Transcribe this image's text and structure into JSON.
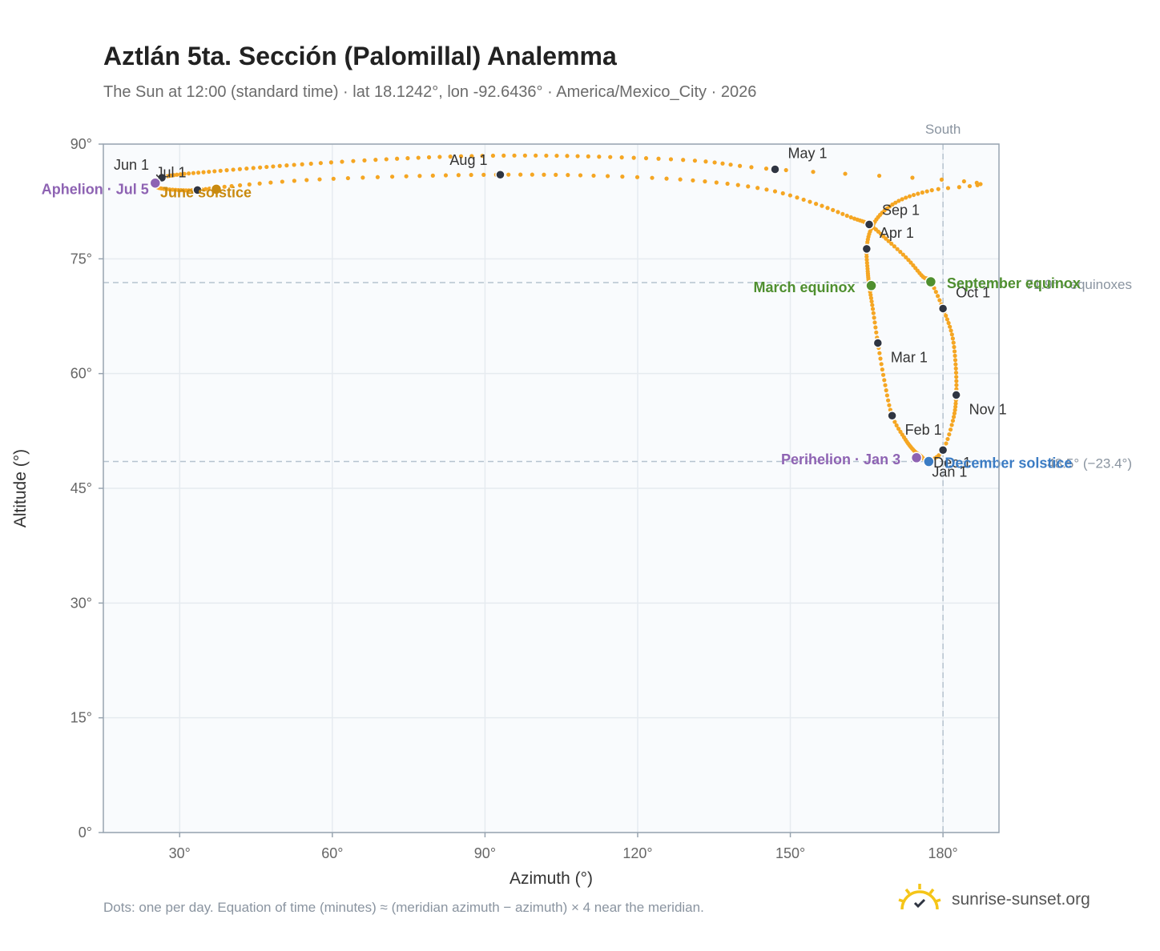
{
  "title": "Aztlán 5ta. Sección (Palomillal) Analemma",
  "subtitle": "The Sun at 12:00 (standard time) · lat 18.1242°, lon -92.6436° · America/Mexico_City · 2026",
  "footnote": "Dots: one per day. Equation of time (minutes) ≈ (meridian azimuth − azimuth) × 4 near the meridian.",
  "brand": {
    "name": "sunrise-sunset.org"
  },
  "colors": {
    "path": "#f5a623",
    "month_marker": "#2f3542",
    "equinox": "#4f8f2f",
    "solstice_summer": "#c98a10",
    "solstice_winter": "#3b7cc4",
    "apsis": "#8e63b3",
    "reference_line": "#b6c3cf",
    "plot_bg": "#f9fbfd",
    "grid": "#e6ebf0",
    "axis": "#98a4b0"
  },
  "chart_data": {
    "type": "scatter",
    "xlabel": "Azimuth (°)",
    "ylabel": "Altitude (°)",
    "xlim": [
      15,
      191
    ],
    "ylim": [
      0,
      90
    ],
    "xticks": [
      30,
      60,
      90,
      120,
      150,
      180
    ],
    "yticks": [
      0,
      15,
      30,
      45,
      60,
      75,
      90
    ],
    "xtick_labels": [
      "30°",
      "60°",
      "90°",
      "120°",
      "150°",
      "180°"
    ],
    "ytick_labels": [
      "0°",
      "15°",
      "30°",
      "45°",
      "60°",
      "75°",
      "90°"
    ],
    "grid": true,
    "meridian": {
      "azimuth": 180,
      "label": "South"
    },
    "reference_lines": [
      {
        "altitude": 71.9,
        "label": "71.9° · equinoxes"
      },
      {
        "altitude": 48.5,
        "label": "48.5° (−23.4°)"
      }
    ],
    "series": [
      {
        "points": [
          [
            177.2,
            48.6
          ],
          [
            175.5,
            49.3
          ],
          [
            174.2,
            50.0
          ],
          [
            172.5,
            51.5
          ],
          [
            170.0,
            54.5
          ],
          [
            168.5,
            59.0
          ],
          [
            167.2,
            64.0
          ],
          [
            166.2,
            68.5
          ],
          [
            165.5,
            71.5
          ],
          [
            165.2,
            73.5
          ],
          [
            165.0,
            76.3
          ],
          [
            165.8,
            78.8
          ],
          [
            168.0,
            81.0
          ],
          [
            172.0,
            82.8
          ],
          [
            178.0,
            84.0
          ],
          [
            186.0,
            85.0
          ],
          [
            147.0,
            86.7
          ],
          [
            132.0,
            87.8
          ],
          [
            115.0,
            88.3
          ],
          [
            100.0,
            88.5
          ],
          [
            85.0,
            88.4
          ],
          [
            70.0,
            88.0
          ],
          [
            55.0,
            87.4
          ],
          [
            45.0,
            86.9
          ],
          [
            36.0,
            86.4
          ],
          [
            29.5,
            86.0
          ],
          [
            26.5,
            85.6
          ],
          [
            25.2,
            85.0
          ],
          [
            25.8,
            84.3
          ],
          [
            29.5,
            84.0
          ],
          [
            33.5,
            84.0
          ],
          [
            40.0,
            84.5
          ],
          [
            55.0,
            85.3
          ],
          [
            75.0,
            85.8
          ],
          [
            93.0,
            86.0
          ],
          [
            110.0,
            85.9
          ],
          [
            130.0,
            85.3
          ],
          [
            145.0,
            84.1
          ],
          [
            155.0,
            82.2
          ],
          [
            162.0,
            80.4
          ],
          [
            165.5,
            79.5
          ],
          [
            169.0,
            77.5
          ],
          [
            173.0,
            75.0
          ],
          [
            176.0,
            72.7
          ],
          [
            177.6,
            72.0
          ],
          [
            180.0,
            68.5
          ],
          [
            181.8,
            65.0
          ],
          [
            182.5,
            61.0
          ],
          [
            182.6,
            57.2
          ],
          [
            182.0,
            54.0
          ],
          [
            180.0,
            50.0
          ],
          [
            177.2,
            48.6
          ]
        ]
      }
    ],
    "month_markers": [
      {
        "label": "Jan 1",
        "az": 177.2,
        "alt": 48.6
      },
      {
        "label": "Feb 1",
        "az": 170.0,
        "alt": 54.5
      },
      {
        "label": "Mar 1",
        "az": 167.2,
        "alt": 64.0
      },
      {
        "label": "Apr 1",
        "az": 165.0,
        "alt": 76.3
      },
      {
        "label": "May 1",
        "az": 147.0,
        "alt": 86.7
      },
      {
        "label": "Jun 1",
        "az": 26.5,
        "alt": 85.6
      },
      {
        "label": "Jul 1",
        "az": 33.5,
        "alt": 84.0
      },
      {
        "label": "Aug 1",
        "az": 93.0,
        "alt": 86.0
      },
      {
        "label": "Sep 1",
        "az": 165.5,
        "alt": 79.5
      },
      {
        "label": "Oct 1",
        "az": 180.0,
        "alt": 68.5
      },
      {
        "label": "Nov 1",
        "az": 182.6,
        "alt": 57.2
      },
      {
        "label": "Dec 1",
        "az": 180.0,
        "alt": 50.0
      }
    ],
    "events": [
      {
        "label": "March equinox",
        "az": 165.9,
        "alt": 71.5,
        "kind": "equinox"
      },
      {
        "label": "September equinox",
        "az": 177.6,
        "alt": 72.0,
        "kind": "equinox"
      },
      {
        "label": "June solstice",
        "az": 37.2,
        "alt": 84.1,
        "kind": "solstice_summer"
      },
      {
        "label": "December solstice",
        "az": 177.2,
        "alt": 48.5,
        "kind": "solstice_winter"
      },
      {
        "label": "Aphelion · Jul 5",
        "az": 25.2,
        "alt": 84.9,
        "kind": "apsis"
      },
      {
        "label": "Perihelion · Jan 3",
        "az": 174.8,
        "alt": 49.0,
        "kind": "apsis"
      }
    ]
  }
}
